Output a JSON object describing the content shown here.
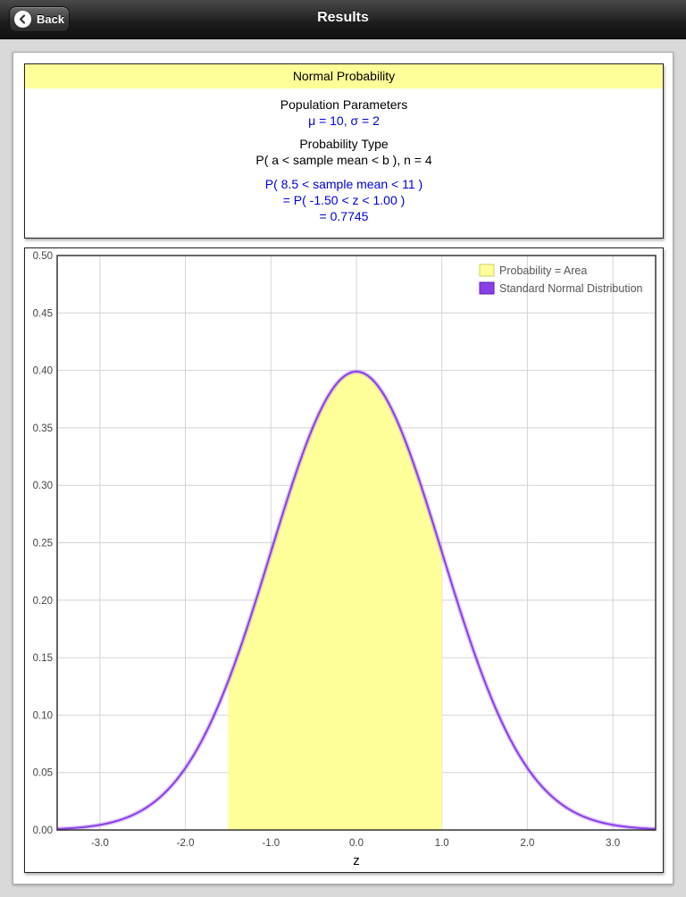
{
  "navbar": {
    "title": "Results",
    "back_label": "Back"
  },
  "info": {
    "header": "Normal Probability",
    "params_title": "Population Parameters",
    "params_value": "μ = 10, σ = 2",
    "type_title": "Probability Type",
    "type_value": "P( a < sample mean < b ), n = 4",
    "result_line1": "P( 8.5 < sample mean < 11 )",
    "result_line2": "= P( -1.50 < z < 1.00 )",
    "result_line3": "= 0.7745"
  },
  "colors": {
    "shade": "#ffff99",
    "curve": "#8a3ee8",
    "text_blue": "#0000dd"
  },
  "chart_data": {
    "type": "area",
    "title": "",
    "xlabel": "z",
    "ylabel": "",
    "xlim": [
      -3.5,
      3.5
    ],
    "ylim": [
      0,
      0.5
    ],
    "x_ticks": [
      "-3.0",
      "-2.0",
      "-1.0",
      "0.0",
      "1.0",
      "2.0",
      "3.0"
    ],
    "x_tick_values": [
      -3,
      -2,
      -1,
      0,
      1,
      2,
      3
    ],
    "y_ticks": [
      "0.00",
      "0.05",
      "0.10",
      "0.15",
      "0.20",
      "0.25",
      "0.30",
      "0.35",
      "0.40",
      "0.45",
      "0.50"
    ],
    "y_tick_values": [
      0,
      0.05,
      0.1,
      0.15,
      0.2,
      0.25,
      0.3,
      0.35,
      0.4,
      0.45,
      0.5
    ],
    "grid": true,
    "legend_position": "top-right",
    "shaded_interval": [
      -1.5,
      1.0
    ],
    "series": [
      {
        "name": "Probability = Area",
        "kind": "shaded-area",
        "color": "#ffff99",
        "from": -1.5,
        "to": 1.0
      },
      {
        "name": "Standard Normal Distribution",
        "kind": "curve",
        "color": "#8a3ee8",
        "mean": 0,
        "sd": 1
      }
    ]
  }
}
